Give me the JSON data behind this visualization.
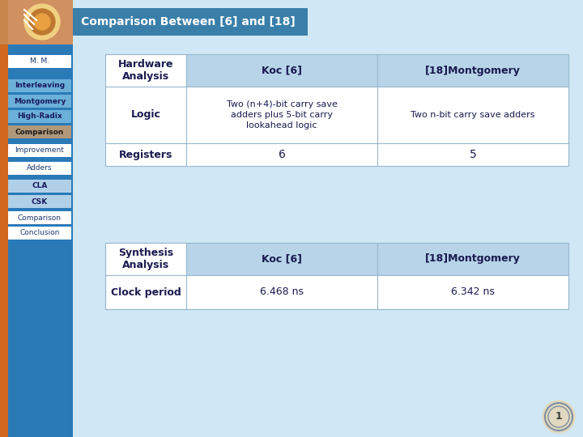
{
  "title": "Comparison Between [6] and [18]",
  "title_bg": "#3a7faa",
  "title_text_color": "#ffffff",
  "bg_color": "#d0e8f5",
  "sidebar_bg": "#2a7ab8",
  "sidebar_orange": "#d06820",
  "sidebar_items": [
    {
      "label": "M. M.",
      "style": "white"
    },
    {
      "label": "Interleaving",
      "style": "blue"
    },
    {
      "label": "Montgomery",
      "style": "blue"
    },
    {
      "label": "High-Radix",
      "style": "blue"
    },
    {
      "label": "Comparison",
      "style": "active"
    },
    {
      "label": "Improvement",
      "style": "white"
    },
    {
      "label": "Adders",
      "style": "white"
    },
    {
      "label": "CLA",
      "style": "light"
    },
    {
      "label": "CSK",
      "style": "light"
    },
    {
      "label": "Comparison",
      "style": "white"
    },
    {
      "label": "Conclusion",
      "style": "white"
    }
  ],
  "table_border": "#9ab8d0",
  "table_header_bg": "#b8d4e8",
  "table_white": "#ffffff",
  "table_text": "#1a1a50",
  "t1_label": "Hardware\nAnalysis",
  "t1_col1": "Koc [6]",
  "t1_col2": "[18]Montgomery",
  "t1_r1_label": "Logic",
  "t1_r1_c1": "Two (n+4)-bit carry save\nadders plus 5-bit carry\nlookahead logic",
  "t1_r1_c2": "Two n-bit carry save adders",
  "t1_r2_label": "Registers",
  "t1_r2_c1": "6",
  "t1_r2_c2": "5",
  "t2_label": "Synthesis\nAnalysis",
  "t2_col1": "Koc [6]",
  "t2_col2": "[18]Montgomery",
  "t2_r1_label": "Clock period",
  "t2_r1_c1": "6.468 ns",
  "t2_r1_c2": "6.342 ns"
}
